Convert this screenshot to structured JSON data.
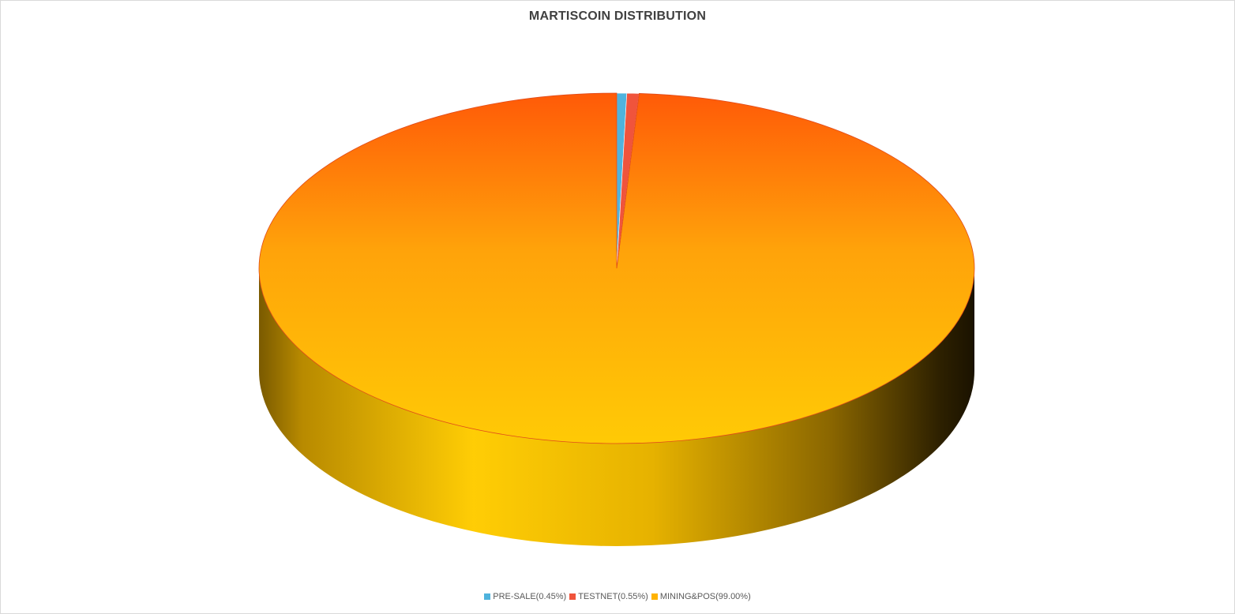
{
  "chart_data": {
    "type": "pie",
    "title": "MARTISCOIN DISTRIBUTION",
    "categories": [
      "PRE-SALE(0.45%)",
      "TESTNET(0.55%)",
      "MINING&POS(99.00%)"
    ],
    "values": [
      0.45,
      0.55,
      99.0
    ],
    "colors": [
      "#4fb3dd",
      "#f0543c",
      "#ffb300"
    ],
    "style": "3d",
    "legend_position": "bottom"
  }
}
